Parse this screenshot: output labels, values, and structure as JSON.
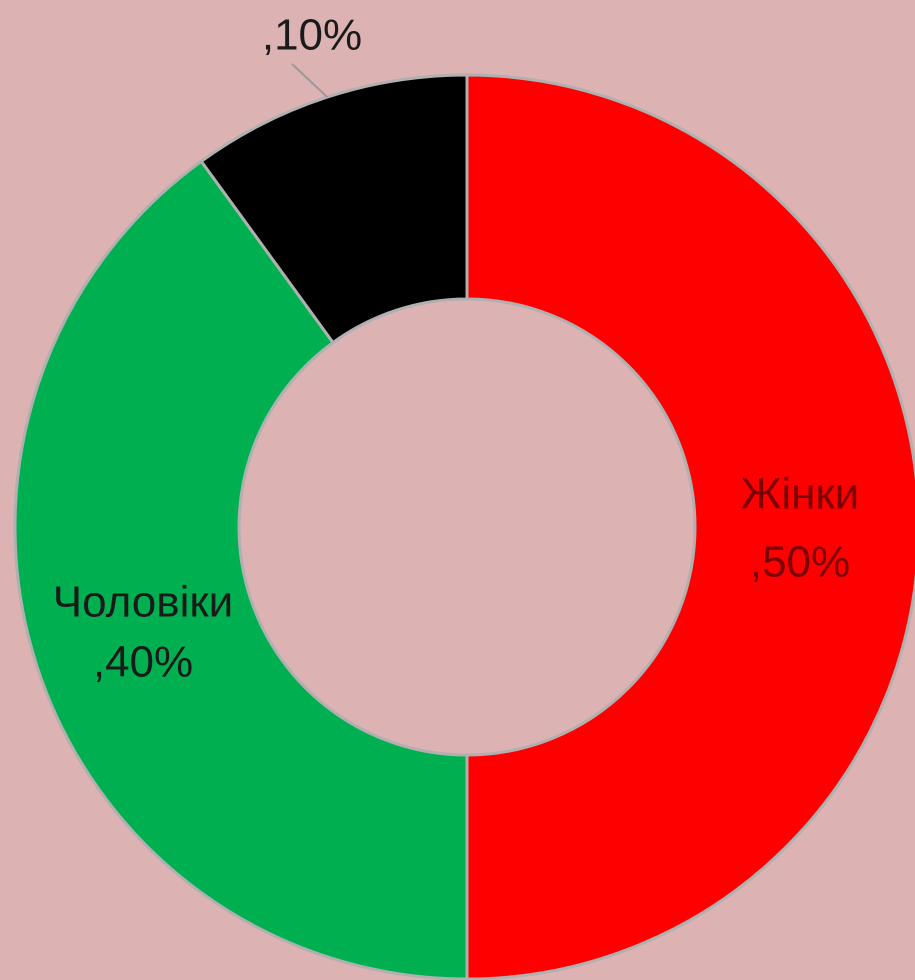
{
  "chart_data": {
    "type": "donut",
    "categories": [
      "Жінки",
      "Чоловіки",
      null
    ],
    "values": [
      50,
      40,
      10
    ],
    "value_labels": [
      ",50%",
      ",40%",
      ",10%"
    ],
    "colors": [
      "#ff0000",
      "#00b050",
      "#000000"
    ],
    "label_colors": [
      "#7a0000",
      "#1a1a1a",
      "#1a1a1a"
    ]
  }
}
